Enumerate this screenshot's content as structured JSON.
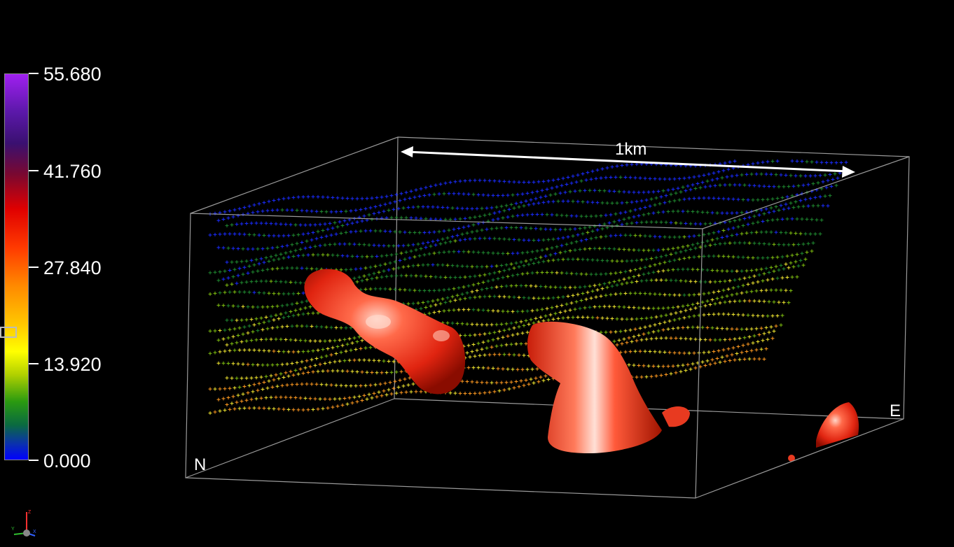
{
  "colorbar": {
    "ticks": [
      "55.680",
      "41.760",
      "27.840",
      "13.920",
      "0.000"
    ],
    "min": 0.0,
    "max": 55.68,
    "slider_value": 18.5,
    "colors": [
      "#a020f0",
      "#3a1070",
      "#e00000",
      "#ff8a00",
      "#ffff00",
      "#2a9a10",
      "#0000ff"
    ]
  },
  "scene": {
    "scale_label": "1km",
    "axis_labels": {
      "north": "N",
      "east": "E"
    },
    "isosurface_color": "#e8301a",
    "background": "#000000"
  },
  "orientation_widget": {
    "axes": [
      "X",
      "Y",
      "Z"
    ],
    "icon": "axes-triad-icon"
  }
}
